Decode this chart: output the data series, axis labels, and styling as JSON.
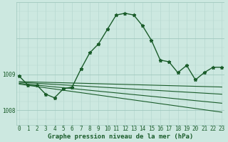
{
  "bg_color": "#cce8e0",
  "plot_bg_color": "#cce8e0",
  "grid_color_v": "#b0d4cc",
  "grid_color_h_major": "#a0c8be",
  "grid_color_h_minor": "#b8d8d0",
  "line_color": "#1a5c2a",
  "xlabel": "Graphe pression niveau de la mer (hPa)",
  "xlabel_fontsize": 6.5,
  "tick_label_fontsize": 5.5,
  "ylim": [
    1007.6,
    1011.0
  ],
  "xlim": [
    -0.3,
    23.3
  ],
  "xticks": [
    0,
    1,
    2,
    3,
    4,
    5,
    6,
    7,
    8,
    9,
    10,
    11,
    12,
    13,
    14,
    15,
    16,
    17,
    18,
    19,
    20,
    21,
    22,
    23
  ],
  "ytick_positions": [
    1008.0,
    1009.0
  ],
  "ytick_labels": [
    "1008",
    "1009"
  ],
  "series_main": {
    "x": [
      0,
      1,
      2,
      3,
      4,
      5,
      6,
      7,
      8,
      9,
      10,
      11,
      12,
      13,
      14,
      15,
      16,
      17,
      18,
      19,
      20,
      21,
      22,
      23
    ],
    "y": [
      1008.95,
      1008.7,
      1008.7,
      1008.45,
      1008.35,
      1008.6,
      1008.65,
      1009.15,
      1009.6,
      1009.85,
      1010.25,
      1010.65,
      1010.7,
      1010.65,
      1010.35,
      1009.95,
      1009.4,
      1009.35,
      1009.05,
      1009.25,
      1008.85,
      1009.05,
      1009.2,
      1009.2
    ],
    "marker": "*",
    "markersize": 3.5,
    "linewidth": 1.0
  },
  "series_flat": [
    {
      "x": [
        0,
        23
      ],
      "y": [
        1008.8,
        1008.65
      ],
      "linewidth": 0.8
    },
    {
      "x": [
        0,
        23
      ],
      "y": [
        1008.78,
        1008.45
      ],
      "linewidth": 0.8
    },
    {
      "x": [
        0,
        23
      ],
      "y": [
        1008.75,
        1008.2
      ],
      "linewidth": 0.8
    },
    {
      "x": [
        0,
        23
      ],
      "y": [
        1008.73,
        1007.95
      ],
      "linewidth": 0.8
    }
  ]
}
